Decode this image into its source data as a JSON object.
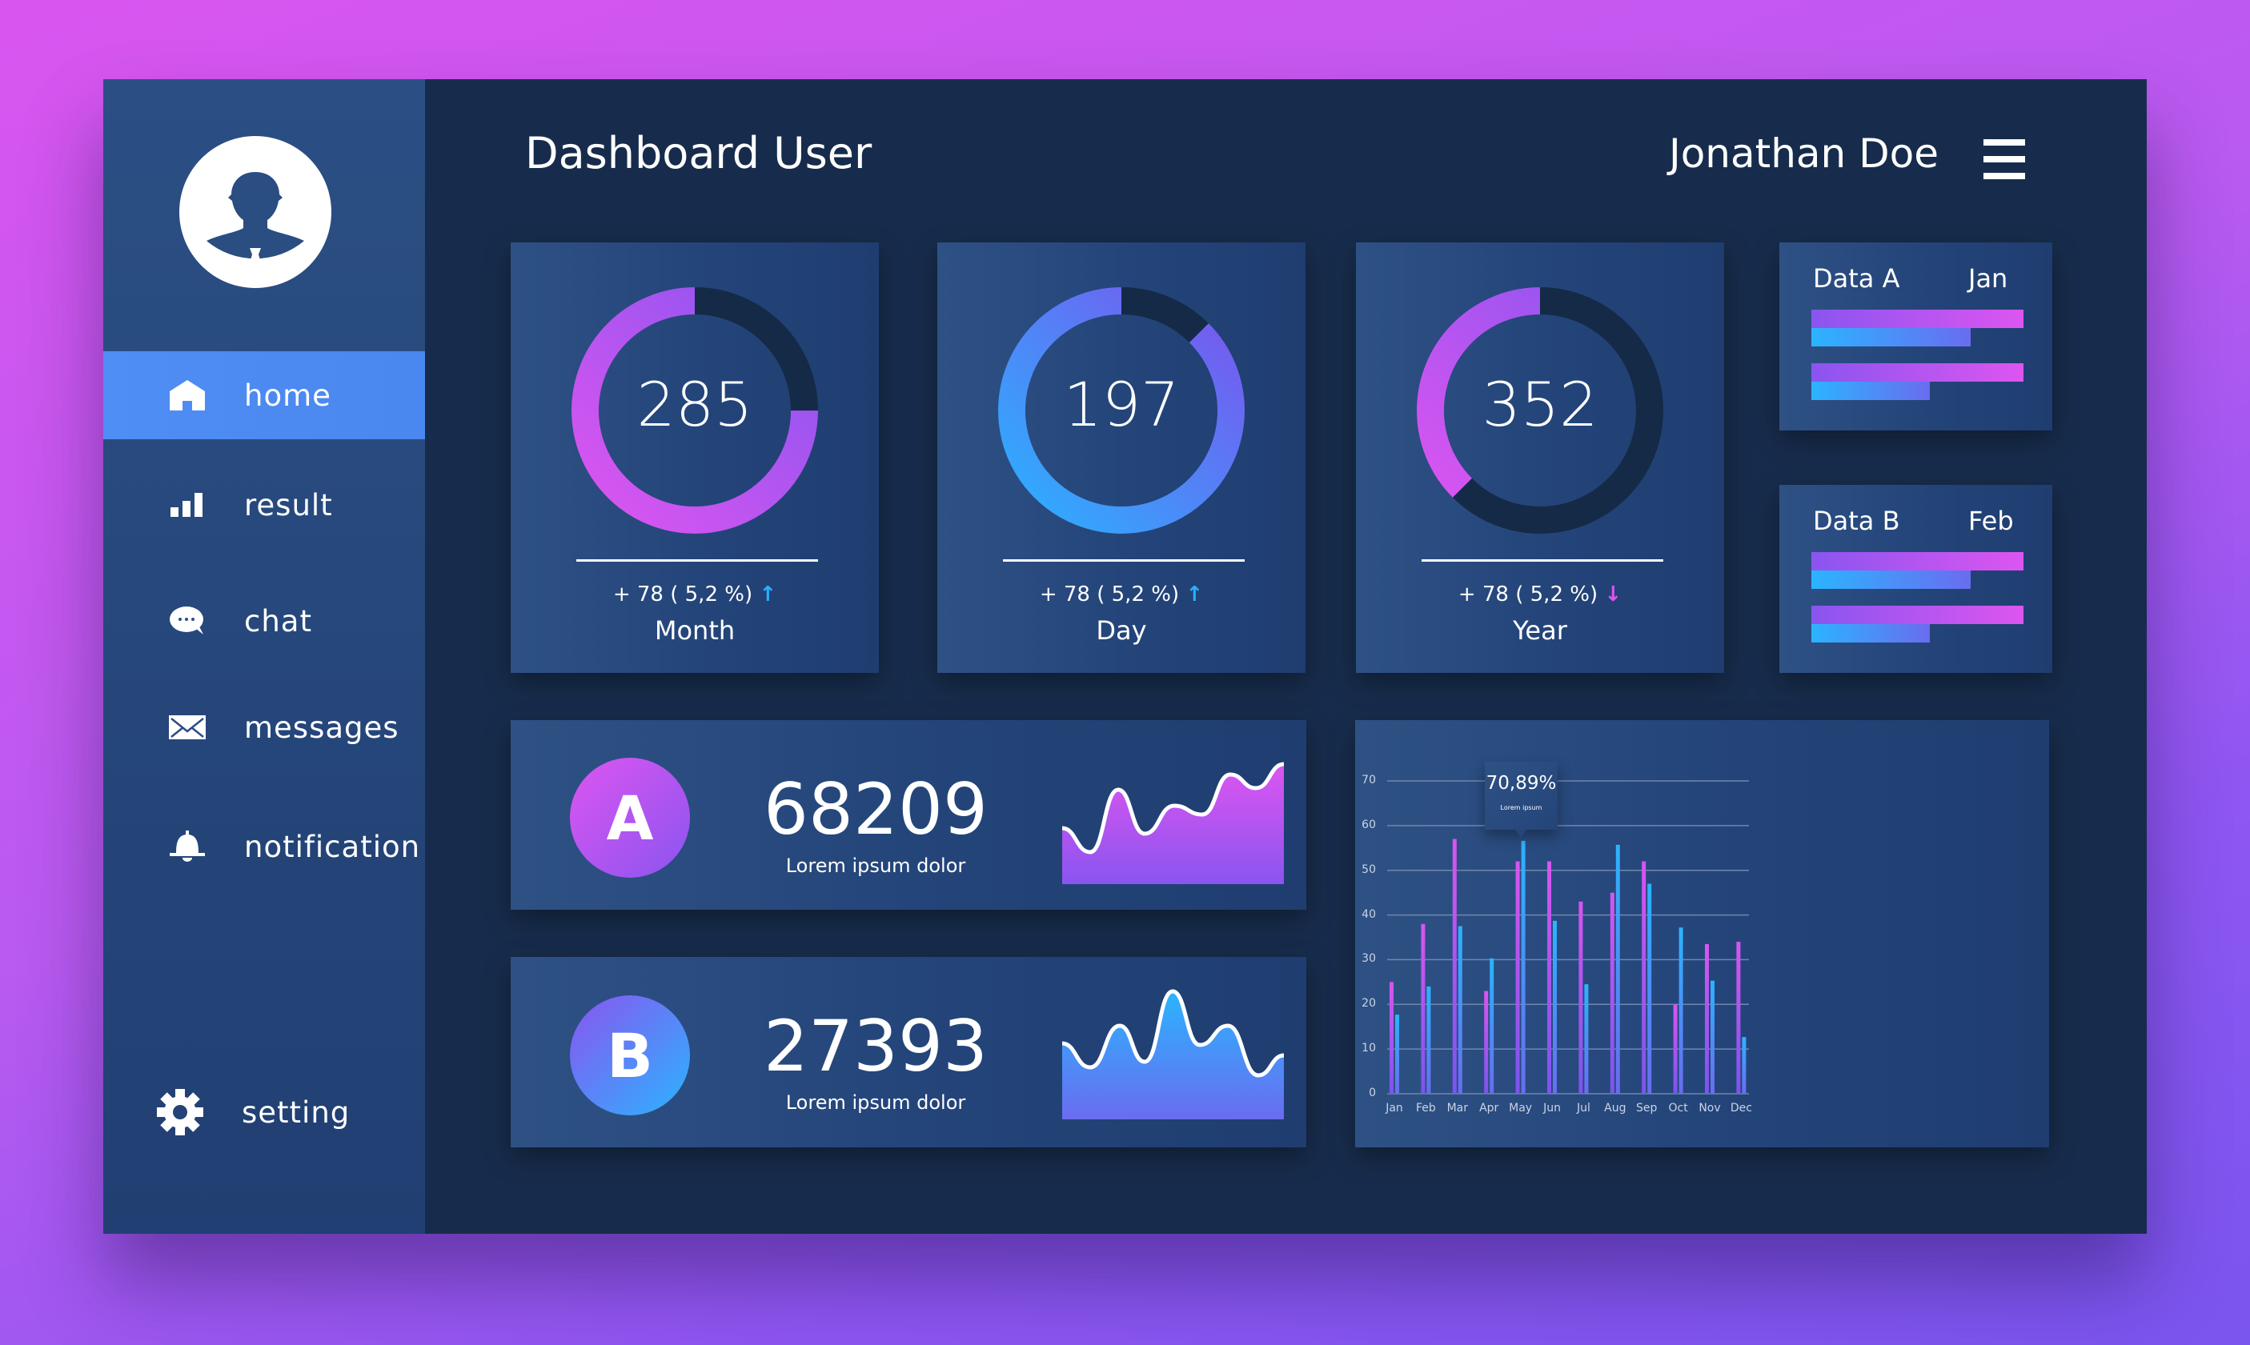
{
  "header": {
    "title": "Dashboard User",
    "user_name": "Jonathan Doe",
    "menu_icon": "hamburger-icon"
  },
  "sidebar": {
    "avatar_icon": "user-avatar-icon",
    "items": [
      {
        "label": "home",
        "icon": "home-icon",
        "active": true
      },
      {
        "label": "result",
        "icon": "bar-chart-icon"
      },
      {
        "label": "chat",
        "icon": "chat-bubble-icon"
      },
      {
        "label": "messages",
        "icon": "envelope-icon"
      },
      {
        "label": "notification",
        "icon": "bell-icon"
      },
      {
        "label": "setting",
        "icon": "gear-icon"
      }
    ]
  },
  "stats": [
    {
      "value": "285",
      "delta": "+ 78 ( 5,2 %)",
      "trend": "up",
      "period": "Month",
      "fill": 0.75
    },
    {
      "value": "197",
      "delta": "+ 78 ( 5,2 %)",
      "trend": "up",
      "period": "Day",
      "fill": 0.875
    },
    {
      "value": "352",
      "delta": "+ 78 ( 5,2 %)",
      "trend": "down",
      "period": "Year",
      "fill": 0.375
    }
  ],
  "data_cards": [
    {
      "label": "Data A",
      "month": "Jan",
      "bars": [
        [
          1.0,
          0.75
        ],
        [
          1.0,
          0.56
        ]
      ]
    },
    {
      "label": "Data B",
      "month": "Feb",
      "bars": [
        [
          1.0,
          0.75
        ],
        [
          1.0,
          0.56
        ]
      ]
    }
  ],
  "metrics": [
    {
      "badge": "A",
      "value": "68209",
      "caption": "Lorem ipsum dolor"
    },
    {
      "badge": "B",
      "value": "27393",
      "caption": "Lorem ipsum dolor"
    }
  ],
  "colors": {
    "magenta": "#d955f0",
    "violet": "#8a55f0",
    "cyan": "#2bb0ff",
    "blue_active": "#4f8ef5",
    "panel": "#172c4c"
  },
  "chart_data": {
    "type": "bar",
    "categories": [
      "Jan",
      "Feb",
      "Mar",
      "Apr",
      "May",
      "Jun",
      "Jul",
      "Aug",
      "Sep",
      "Oct",
      "Nov",
      "Dec"
    ],
    "series": [
      {
        "values": [
          25,
          38,
          57,
          23,
          52,
          52,
          43,
          45,
          52,
          20,
          33.5,
          34
        ],
        "color": "#d955f0"
      },
      {
        "values": [
          17.7,
          24,
          37.5,
          30.3,
          56.6,
          38.7,
          24.5,
          55.7,
          47,
          37.2,
          25.3,
          12.7
        ],
        "color": "#2bb0ff"
      }
    ],
    "yticks": [
      "0",
      "10",
      "20",
      "30",
      "40",
      "50",
      "60",
      "70"
    ],
    "ylim": [
      0,
      70
    ],
    "grid": true,
    "tooltip": {
      "value": "70,89%",
      "caption": "Lorem ipsum",
      "category": "May"
    }
  }
}
